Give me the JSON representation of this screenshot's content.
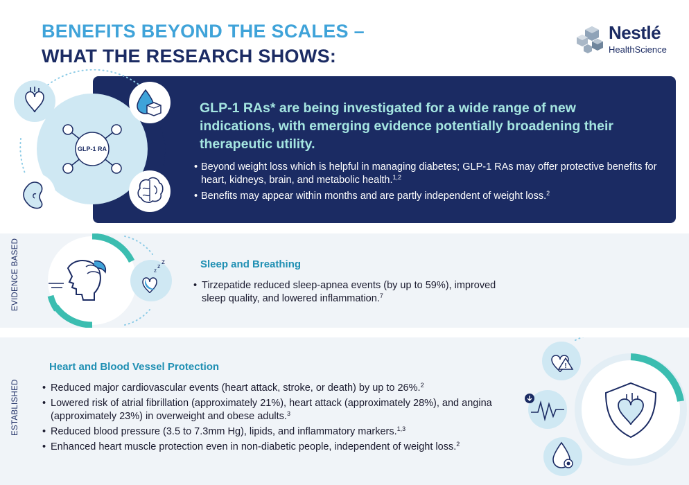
{
  "header": {
    "title_line1": "BENEFITS BEYOND THE SCALES –",
    "title_line2": "WHAT THE RESEARCH SHOWS:"
  },
  "logo": {
    "brand": "Nestlé",
    "subbrand": "HealthScience"
  },
  "hub": {
    "center_label": "GLP-1 RA",
    "icons": [
      "heart-icon",
      "water-drop-cube-icon",
      "kidney-icon",
      "brain-icon"
    ]
  },
  "banner": {
    "headline": "GLP-1 RAs* are being investigated for a wide range of new indications, with emerging evidence potentially broadening their therapeutic utility.",
    "bullets": [
      {
        "text": "Beyond weight loss which is helpful in managing diabetes; GLP-1 RAs may offer protective benefits for heart, kidneys, brain, and metabolic health.",
        "ref": "1,2"
      },
      {
        "text": "Benefits may appear within months and are partly independent of weight loss.",
        "ref": "2"
      }
    ]
  },
  "evidence_based": {
    "side_label": "EVIDENCE BASED",
    "heading": "Sleep and Breathing",
    "bullets": [
      {
        "text": "Tirzepatide reduced sleep-apnea events (by up to 59%), improved sleep quality, and lowered inflammation.",
        "ref": "7"
      }
    ],
    "icons": [
      "sleeping-face-icon",
      "sleep-heart-icon"
    ]
  },
  "established": {
    "side_label": "ESTABLISHED",
    "heading": "Heart and Blood Vessel Protection",
    "bullets": [
      {
        "text": "Reduced major cardiovascular events (heart attack, stroke, or death) by up to 26%.",
        "ref": "2"
      },
      {
        "text": "Lowered risk of atrial fibrillation (approximately 21%), heart attack (approximately 28%), and angina (approximately 23%) in overweight and obese adults.",
        "ref": "3"
      },
      {
        "text": "Reduced blood pressure (3.5 to 7.3mm Hg), lipids, and inflammatory markers.",
        "ref": "1,3"
      },
      {
        "text": "Enhanced heart muscle protection even in non-diabetic people, independent of weight loss.",
        "ref": "2"
      }
    ],
    "icons": [
      "heart-warning-icon",
      "heart-rhythm-icon",
      "blood-drop-icon",
      "heart-shield-icon"
    ]
  },
  "colors": {
    "navy": "#1b2b63",
    "light_blue": "#3fa3d9",
    "teal": "#3bbdb0",
    "mint_text": "#a5e6e1",
    "pale_circle": "#cfe8f3",
    "band_bg": "#f0f4f8"
  }
}
